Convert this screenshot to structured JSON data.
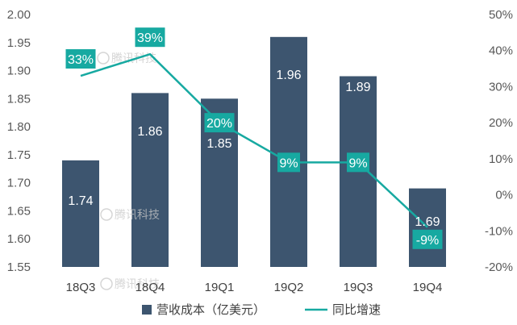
{
  "chart_data": {
    "type": "bar",
    "categories": [
      "18Q3",
      "18Q4",
      "19Q1",
      "19Q2",
      "19Q3",
      "19Q4"
    ],
    "series": [
      {
        "name": "营收成本（亿美元）",
        "type": "bar",
        "axis": "left",
        "values": [
          1.74,
          1.86,
          1.85,
          1.96,
          1.89,
          1.69
        ],
        "labels": [
          "1.74",
          "1.86",
          "1.85",
          "1.96",
          "1.89",
          "1.69"
        ]
      },
      {
        "name": "同比增速",
        "type": "line",
        "axis": "right",
        "values": [
          33,
          39,
          20,
          9,
          9,
          -9
        ],
        "labels": [
          "33%",
          "39%",
          "20%",
          "9%",
          "9%",
          "-9%"
        ]
      }
    ],
    "y_left": {
      "lim": [
        1.55,
        2.0
      ],
      "ticks": [
        1.55,
        1.6,
        1.65,
        1.7,
        1.75,
        1.8,
        1.85,
        1.9,
        1.95,
        2.0
      ],
      "tick_labels": [
        "1.55",
        "1.60",
        "1.65",
        "1.70",
        "1.75",
        "1.80",
        "1.85",
        "1.90",
        "1.95",
        "2.00"
      ]
    },
    "y_right": {
      "lim": [
        -20,
        50
      ],
      "ticks": [
        -20,
        -10,
        0,
        10,
        20,
        30,
        40,
        50
      ],
      "tick_labels": [
        "-20%",
        "-10%",
        "0%",
        "10%",
        "20%",
        "30%",
        "40%",
        "50%"
      ]
    },
    "grid": false,
    "legend_position": "bottom-center"
  },
  "watermarks": [
    "腾讯科技",
    "腾讯科技",
    "腾讯科技"
  ],
  "colors": {
    "bar": "#3d556f",
    "line": "#17a9a1",
    "label_box": "#17a9a1",
    "tick_text": "#595959",
    "watermark": "#c8c8c8"
  }
}
